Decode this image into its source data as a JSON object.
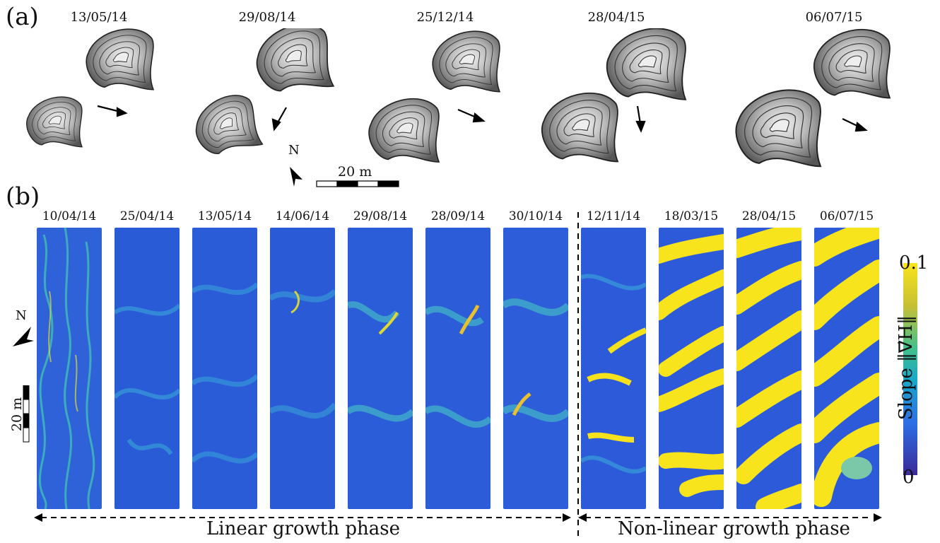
{
  "panel_a": {
    "label": "(a)",
    "dates": [
      "13/05/14",
      "29/08/14",
      "25/12/14",
      "28/04/15",
      "06/07/15"
    ],
    "north_label": "N",
    "scale_label": "20 m"
  },
  "panel_b": {
    "label": "(b)",
    "dates": [
      "10/04/14",
      "25/04/14",
      "13/05/14",
      "14/06/14",
      "29/08/14",
      "28/09/14",
      "30/10/14",
      "12/11/14",
      "18/03/15",
      "28/04/15",
      "06/07/15"
    ],
    "north_label": "N",
    "scale_label": "20 m",
    "linear_phase": "Linear growth phase",
    "nonlinear_phase": "Non-linear growth phase",
    "colorbar": {
      "max": "0.1",
      "min": "0",
      "label": "Slope ‖∇⃗H‖",
      "colors": [
        "#3b2a98",
        "#2d6fe6",
        "#18a8c8",
        "#43c08a",
        "#c8c034",
        "#f9e41c"
      ]
    }
  }
}
